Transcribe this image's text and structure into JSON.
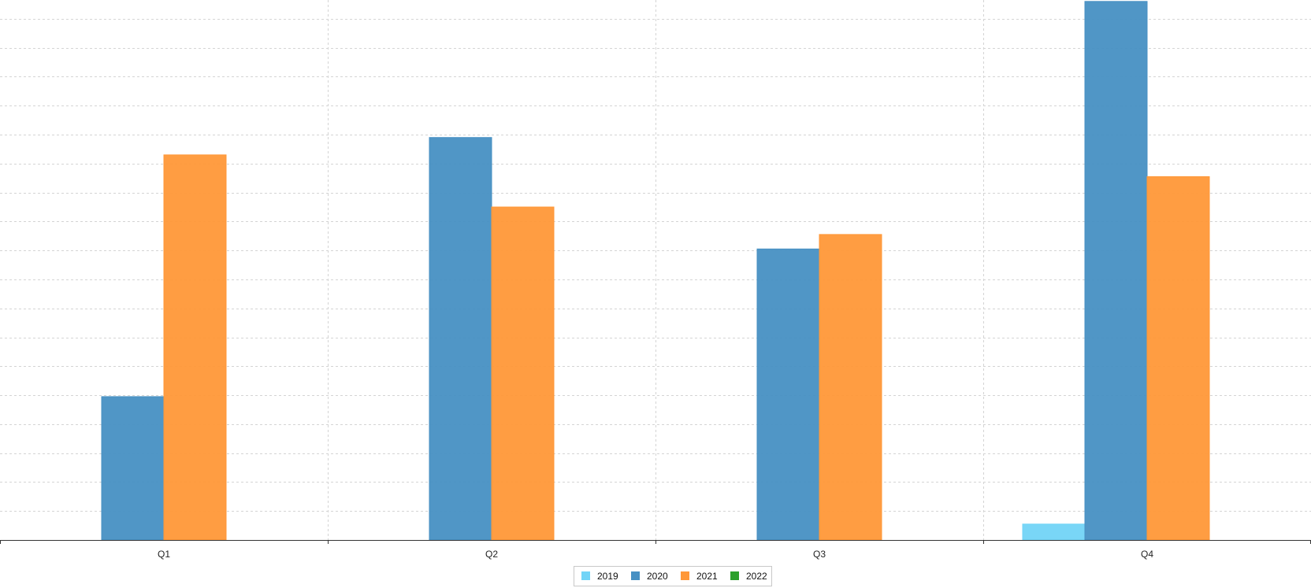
{
  "chart_data": {
    "type": "bar",
    "categories": [
      "Q1",
      "Q2",
      "Q3",
      "Q4"
    ],
    "series": [
      {
        "name": "2019",
        "values": [
          0,
          0,
          0,
          1.1
        ],
        "color": "#72D4F7"
      },
      {
        "name": "2020",
        "values": [
          9.9,
          27.8,
          20.1,
          37.2
        ],
        "color": "#4790C3"
      },
      {
        "name": "2021",
        "values": [
          26.6,
          23.0,
          21.1,
          25.1
        ],
        "color": "#FF9838"
      },
      {
        "name": "2022",
        "values": [
          0,
          0,
          0,
          0
        ],
        "color": "#2CA02C"
      }
    ],
    "ylim": [
      0,
      37.3
    ],
    "y_gridline_step": 2,
    "grid": true,
    "y_tick_labels_visible": false,
    "legend_position": "bottom-center"
  }
}
